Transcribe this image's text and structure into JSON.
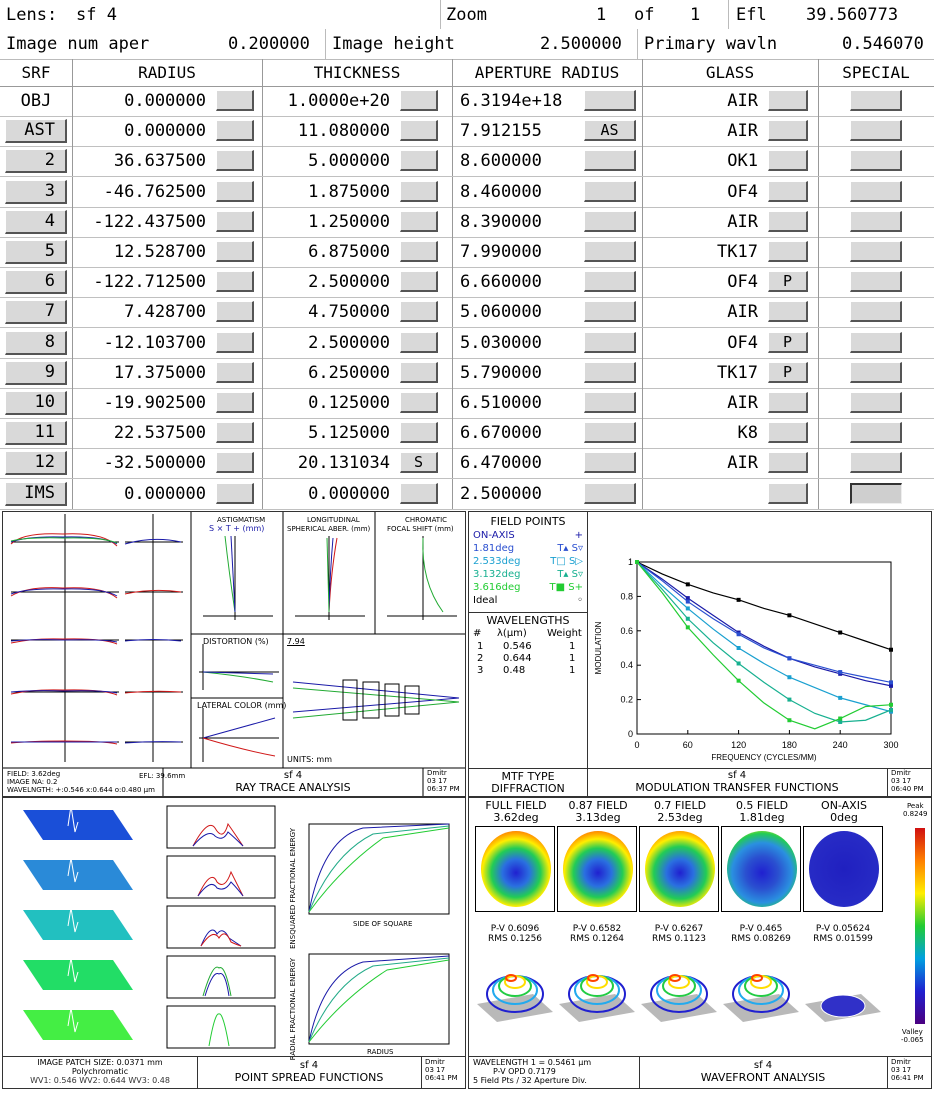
{
  "header": {
    "lens_label": "Lens:",
    "lens_name": "sf 4",
    "zoom_label": "Zoom",
    "zoom_current": "1",
    "zoom_of": "of",
    "zoom_total": "1",
    "efl_label": "Efl",
    "efl_value": "39.560773",
    "ina_label": "Image num aper",
    "ina_value": "0.200000",
    "ih_label": "Image height",
    "ih_value": "2.500000",
    "pw_label": "Primary wavln",
    "pw_value": "0.546070"
  },
  "columns": {
    "srf": "SRF",
    "radius": "RADIUS",
    "thickness": "THICKNESS",
    "aperture": "APERTURE RADIUS",
    "glass": "GLASS",
    "special": "SPECIAL"
  },
  "surfaces": [
    {
      "srf": "OBJ",
      "radius": "0.000000",
      "thickness": "1.0000e+20",
      "aperture": "6.3194e+18",
      "ap_flag": "",
      "glass": "AIR",
      "glass_flag": "",
      "btn": false
    },
    {
      "srf": "AST",
      "radius": "0.000000",
      "thickness": "11.080000",
      "aperture": "7.912155",
      "ap_flag": "AS",
      "glass": "AIR",
      "glass_flag": "",
      "btn": true
    },
    {
      "srf": "2",
      "radius": "36.637500",
      "thickness": "5.000000",
      "aperture": "8.600000",
      "ap_flag": "",
      "glass": "OK1",
      "glass_flag": "",
      "btn": true
    },
    {
      "srf": "3",
      "radius": "-46.762500",
      "thickness": "1.875000",
      "aperture": "8.460000",
      "ap_flag": "",
      "glass": "OF4",
      "glass_flag": "",
      "btn": true
    },
    {
      "srf": "4",
      "radius": "-122.437500",
      "thickness": "1.250000",
      "aperture": "8.390000",
      "ap_flag": "",
      "glass": "AIR",
      "glass_flag": "",
      "btn": true
    },
    {
      "srf": "5",
      "radius": "12.528700",
      "thickness": "6.875000",
      "aperture": "7.990000",
      "ap_flag": "",
      "glass": "TK17",
      "glass_flag": "",
      "btn": true
    },
    {
      "srf": "6",
      "radius": "-122.712500",
      "thickness": "2.500000",
      "aperture": "6.660000",
      "ap_flag": "",
      "glass": "OF4",
      "glass_flag": "P",
      "btn": true
    },
    {
      "srf": "7",
      "radius": "7.428700",
      "thickness": "4.750000",
      "aperture": "5.060000",
      "ap_flag": "",
      "glass": "AIR",
      "glass_flag": "",
      "btn": true
    },
    {
      "srf": "8",
      "radius": "-12.103700",
      "thickness": "2.500000",
      "aperture": "5.030000",
      "ap_flag": "",
      "glass": "OF4",
      "glass_flag": "P",
      "btn": true
    },
    {
      "srf": "9",
      "radius": "17.375000",
      "thickness": "6.250000",
      "aperture": "5.790000",
      "ap_flag": "",
      "glass": "TK17",
      "glass_flag": "P",
      "btn": true
    },
    {
      "srf": "10",
      "radius": "-19.902500",
      "thickness": "0.125000",
      "aperture": "6.510000",
      "ap_flag": "",
      "glass": "AIR",
      "glass_flag": "",
      "btn": true
    },
    {
      "srf": "11",
      "radius": "22.537500",
      "thickness": "5.125000",
      "aperture": "6.670000",
      "ap_flag": "",
      "glass": "K8",
      "glass_flag": "",
      "btn": true
    },
    {
      "srf": "12",
      "radius": "-32.500000",
      "thickness": "20.131034",
      "thk_flag": "S",
      "aperture": "6.470000",
      "ap_flag": "",
      "glass": "AIR",
      "glass_flag": "",
      "btn": true
    },
    {
      "srf": "IMS",
      "radius": "0.000000",
      "thickness": "0.000000",
      "aperture": "2.500000",
      "ap_flag": "",
      "glass": "",
      "glass_flag": "",
      "btn": true
    }
  ],
  "ray_trace": {
    "title_small": "sf 4",
    "title": "RAY TRACE ANALYSIS",
    "corner": "Dmitr",
    "corner_date": "03 17",
    "corner_time": "06:37 PM",
    "field": "FIELD: 3.62deg",
    "ima": "IMAGE NA: 0.2",
    "efl": "EFL: 39.6mm",
    "wavl": "WAVELNGTH: +:0.546 x:0.644 o:0.480 µm",
    "astig_label": "ASTIGMATISM",
    "astig_sub": "S × T + (mm)",
    "long_label": "LONGITUDINAL",
    "long_sub": "SPHERICAL ABER. (mm)",
    "chrom_label": "CHROMATIC",
    "chrom_sub": "FOCAL SHIFT (mm)",
    "dist_label": "DISTORTION (%)",
    "lat_label": "LATERAL COLOR (mm)",
    "units": "UNITS: mm",
    "scale": "7.94"
  },
  "mtf": {
    "field_points_title": "FIELD POINTS",
    "fields": [
      {
        "label": "ON-AXIS",
        "mark": "+",
        "color": "#1a1aa8"
      },
      {
        "label": "1.81deg",
        "mark": "T▴ S▿",
        "color": "#2a4fd0"
      },
      {
        "label": "2.533deg",
        "mark": "T□ S▷",
        "color": "#1aa0d0"
      },
      {
        "label": "3.132deg",
        "mark": "T▴ S▿",
        "color": "#17b090"
      },
      {
        "label": "3.616deg",
        "mark": "T■ S+",
        "color": "#22cc33"
      },
      {
        "label": "Ideal",
        "mark": "◦",
        "color": "#000000"
      }
    ],
    "wavelengths_title": "WAVELENGTHS",
    "wl_header_num": "#",
    "wl_header_lambda": "λ(µm)",
    "wl_header_weight": "Weight",
    "wavelengths": [
      {
        "n": "1",
        "lambda": "0.546",
        "weight": "1"
      },
      {
        "n": "2",
        "lambda": "0.644",
        "weight": "1"
      },
      {
        "n": "3",
        "lambda": "0.48",
        "weight": "1"
      }
    ],
    "mtf_type_label": "MTF TYPE",
    "mtf_type": "DIFFRACTION",
    "title_small": "sf 4",
    "title": "MODULATION TRANSFER FUNCTIONS",
    "corner": "Dmitr",
    "corner_date": "03 17",
    "corner_time": "06:40 PM",
    "xlabel": "FREQUENCY (CYCLES/MM)",
    "ylabel": "MODULATION",
    "xticks": [
      "0",
      "60",
      "120",
      "180",
      "240",
      "300"
    ],
    "yticks": [
      "0",
      "0.2",
      "0.4",
      "0.6",
      "0.8",
      "1"
    ]
  },
  "chart_data": {
    "type": "line",
    "title": "",
    "xlabel": "FREQUENCY (CYCLES/MM)",
    "ylabel": "MODULATION",
    "xlim": [
      0,
      300
    ],
    "ylim": [
      0,
      1
    ],
    "x": [
      0,
      30,
      60,
      90,
      120,
      150,
      180,
      210,
      240,
      270,
      300
    ],
    "series": [
      {
        "name": "Ideal",
        "color": "#000000",
        "values": [
          1.0,
          0.93,
          0.87,
          0.82,
          0.78,
          0.73,
          0.69,
          0.64,
          0.59,
          0.54,
          0.49
        ]
      },
      {
        "name": "ON-AXIS",
        "color": "#1a1aa8",
        "values": [
          1.0,
          0.9,
          0.79,
          0.69,
          0.59,
          0.51,
          0.44,
          0.39,
          0.35,
          0.31,
          0.28
        ]
      },
      {
        "name": "1.81deg",
        "color": "#2a4fd0",
        "values": [
          1.0,
          0.89,
          0.77,
          0.67,
          0.58,
          0.5,
          0.44,
          0.4,
          0.36,
          0.33,
          0.3
        ]
      },
      {
        "name": "2.533deg",
        "color": "#1aa0d0",
        "values": [
          1.0,
          0.86,
          0.73,
          0.61,
          0.5,
          0.41,
          0.33,
          0.27,
          0.21,
          0.17,
          0.13
        ]
      },
      {
        "name": "3.132deg",
        "color": "#17b090",
        "values": [
          1.0,
          0.84,
          0.67,
          0.53,
          0.41,
          0.3,
          0.2,
          0.12,
          0.07,
          0.08,
          0.14
        ]
      },
      {
        "name": "3.616deg",
        "color": "#22cc33",
        "values": [
          1.0,
          0.82,
          0.62,
          0.46,
          0.31,
          0.18,
          0.08,
          0.03,
          0.09,
          0.16,
          0.17
        ]
      }
    ]
  },
  "psf": {
    "title_small": "sf 4",
    "title": "POINT SPREAD FUNCTIONS",
    "corner": "Dmitr",
    "corner_date": "03 17",
    "corner_time": "06:41 PM",
    "patch": "IMAGE PATCH SIZE: 0.0371 mm",
    "poly": "Polychromatic",
    "wl": "WV1: 0.546 WV2: 0.644 WV3: 0.48",
    "ee_ylabel": "ENSQUARED FRACTIONAL ENERGY",
    "ee_xlabel": "SIDE OF SQUARE",
    "re_ylabel": "RADIAL FRACTIONAL ENERGY",
    "re_xlabel": "RADIUS"
  },
  "wavefront": {
    "fields": [
      {
        "name": "FULL FIELD",
        "deg": "3.62deg",
        "pv": "P-V 0.6096",
        "rms": "RMS 0.1256"
      },
      {
        "name": "0.87 FIELD",
        "deg": "3.13deg",
        "pv": "P-V 0.6582",
        "rms": "RMS 0.1264"
      },
      {
        "name": "0.7 FIELD",
        "deg": "2.53deg",
        "pv": "P-V 0.6267",
        "rms": "RMS 0.1123"
      },
      {
        "name": "0.5 FIELD",
        "deg": "1.81deg",
        "pv": "P-V 0.465",
        "rms": "RMS 0.08269"
      },
      {
        "name": "ON-AXIS",
        "deg": "0deg",
        "pv": "P-V 0.05624",
        "rms": "RMS 0.01599"
      }
    ],
    "peak_label": "Peak",
    "peak_value": "0.8249",
    "valley_label": "Valley",
    "valley_value": "-0.065",
    "wl_line": "WAVELENGTH 1 = 0.5461 µm",
    "opd_line": "P-V OPD 0.7179",
    "fp_line": "5 Field Pts / 32 Aperture Div.",
    "title_small": "sf 4",
    "title": "WAVEFRONT ANALYSIS",
    "corner": "Dmitr",
    "corner_date": "03 17",
    "corner_time": "06:41 PM"
  }
}
